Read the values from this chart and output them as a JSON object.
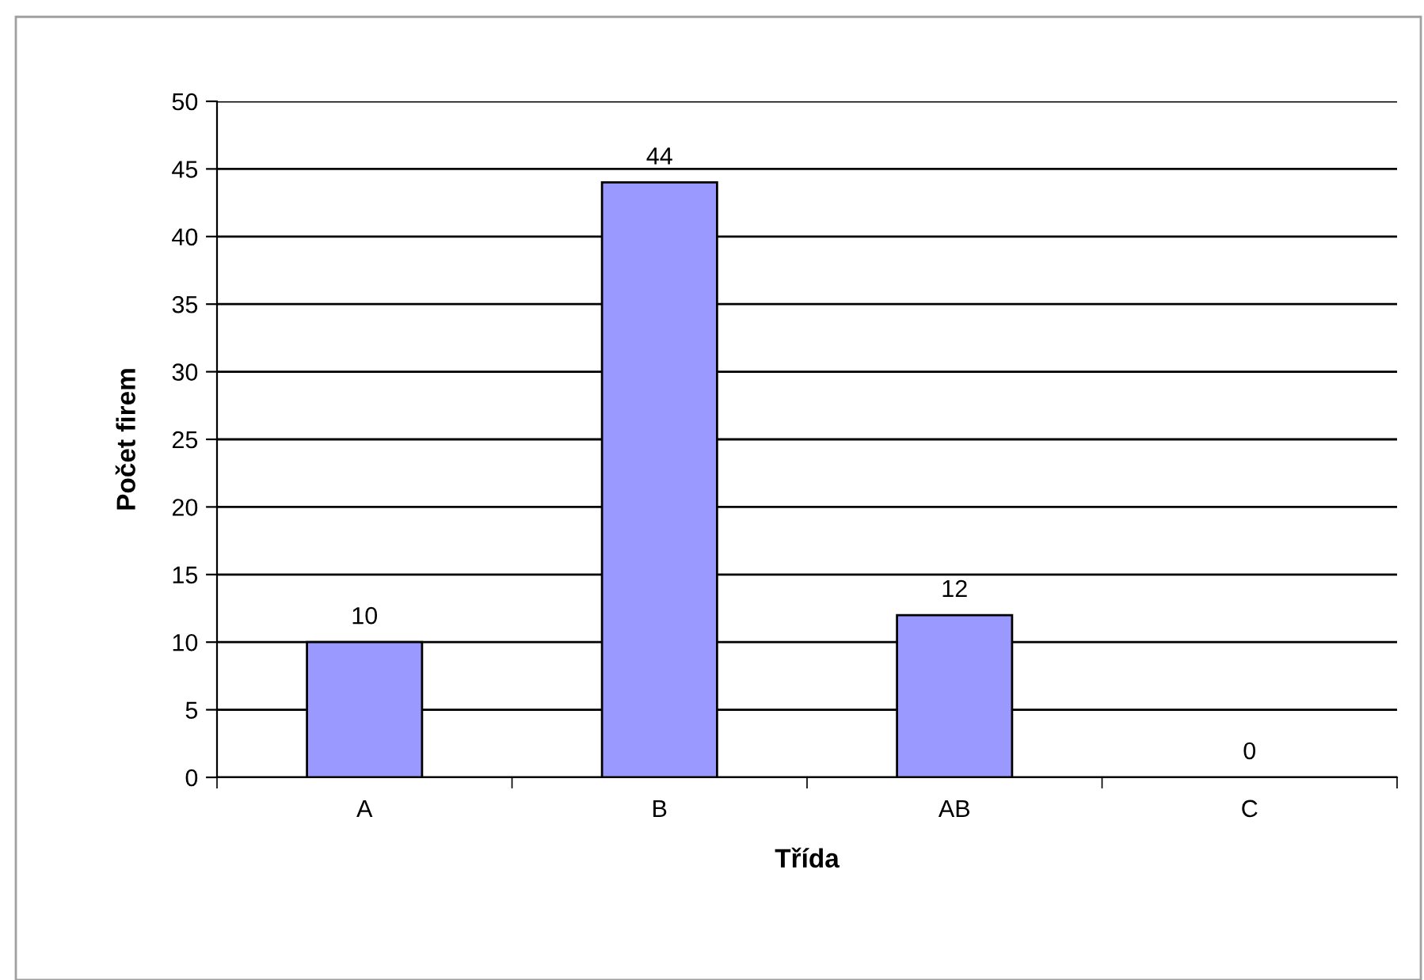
{
  "chart_data": {
    "type": "bar",
    "xlabel": "Třída",
    "ylabel": "Počet firem",
    "categories": [
      "A",
      "B",
      "AB",
      "C"
    ],
    "values": [
      10,
      44,
      12,
      0
    ],
    "color": "#9999ff",
    "ylim": [
      0,
      50
    ],
    "yticks": [
      0,
      5,
      10,
      15,
      20,
      25,
      30,
      35,
      40,
      45,
      50
    ],
    "grid": "y",
    "data_labels": true
  }
}
